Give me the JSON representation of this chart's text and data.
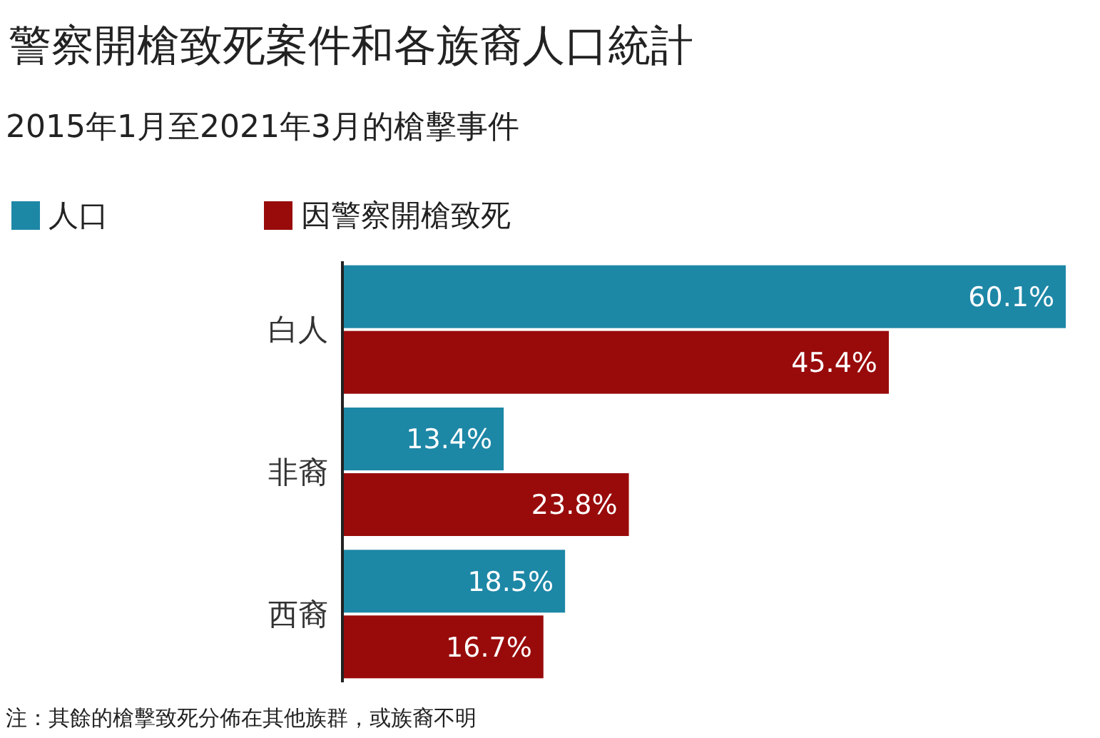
{
  "chart_data": {
    "type": "bar",
    "orientation": "horizontal",
    "title": "警察開槍致死案件和各族裔人口統計",
    "subtitle": "2015年1月至2021年3月的槍擊事件",
    "categories": [
      "白人",
      "非裔",
      "西裔"
    ],
    "series": [
      {
        "name": "人口",
        "color": "#1d87a6",
        "values": [
          60.1,
          13.4,
          18.5
        ],
        "value_labels": [
          "60.1%",
          "13.4%",
          "18.5%"
        ]
      },
      {
        "name": "因警察開槍致死",
        "color": "#990b0b",
        "values": [
          45.4,
          23.8,
          16.7
        ],
        "value_labels": [
          "45.4%",
          "23.8%",
          "16.7%"
        ]
      }
    ],
    "legend": "top left",
    "tick_labels": "y",
    "annotations": [
      "注：其餘的槍擊致死分佈在其他族群，或族裔不明"
    ]
  }
}
